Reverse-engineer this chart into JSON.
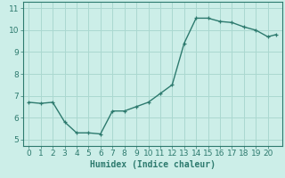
{
  "title": "",
  "xlabel": "Humidex (Indice chaleur)",
  "ylabel": "",
  "x_values": [
    0,
    1,
    2,
    3,
    4,
    5,
    6,
    7,
    8,
    9,
    10,
    11,
    12,
    13,
    14,
    15,
    16,
    17,
    18,
    19,
    20,
    20.7
  ],
  "y_values": [
    6.7,
    6.65,
    6.7,
    5.8,
    5.3,
    5.3,
    5.25,
    6.3,
    6.3,
    6.5,
    6.7,
    7.1,
    7.5,
    9.4,
    10.55,
    10.55,
    10.4,
    10.35,
    10.15,
    10.0,
    9.7,
    9.8
  ],
  "line_color": "#2d7a6e",
  "marker": "+",
  "marker_color": "#2d7a6e",
  "bg_color": "#cceee8",
  "grid_color": "#aad8d0",
  "tick_color": "#2d7a6e",
  "spine_color": "#2d7a6e",
  "ylim": [
    4.7,
    11.3
  ],
  "xlim": [
    -0.5,
    21.2
  ],
  "yticks": [
    5,
    6,
    7,
    8,
    9,
    10,
    11
  ],
  "xticks": [
    0,
    1,
    2,
    3,
    4,
    5,
    6,
    7,
    8,
    9,
    10,
    11,
    12,
    13,
    14,
    15,
    16,
    17,
    18,
    19,
    20
  ],
  "fontsize_label": 7,
  "fontsize_tick": 6.5,
  "linewidth": 1.0,
  "markersize": 3.5,
  "markeredgewidth": 0.9
}
